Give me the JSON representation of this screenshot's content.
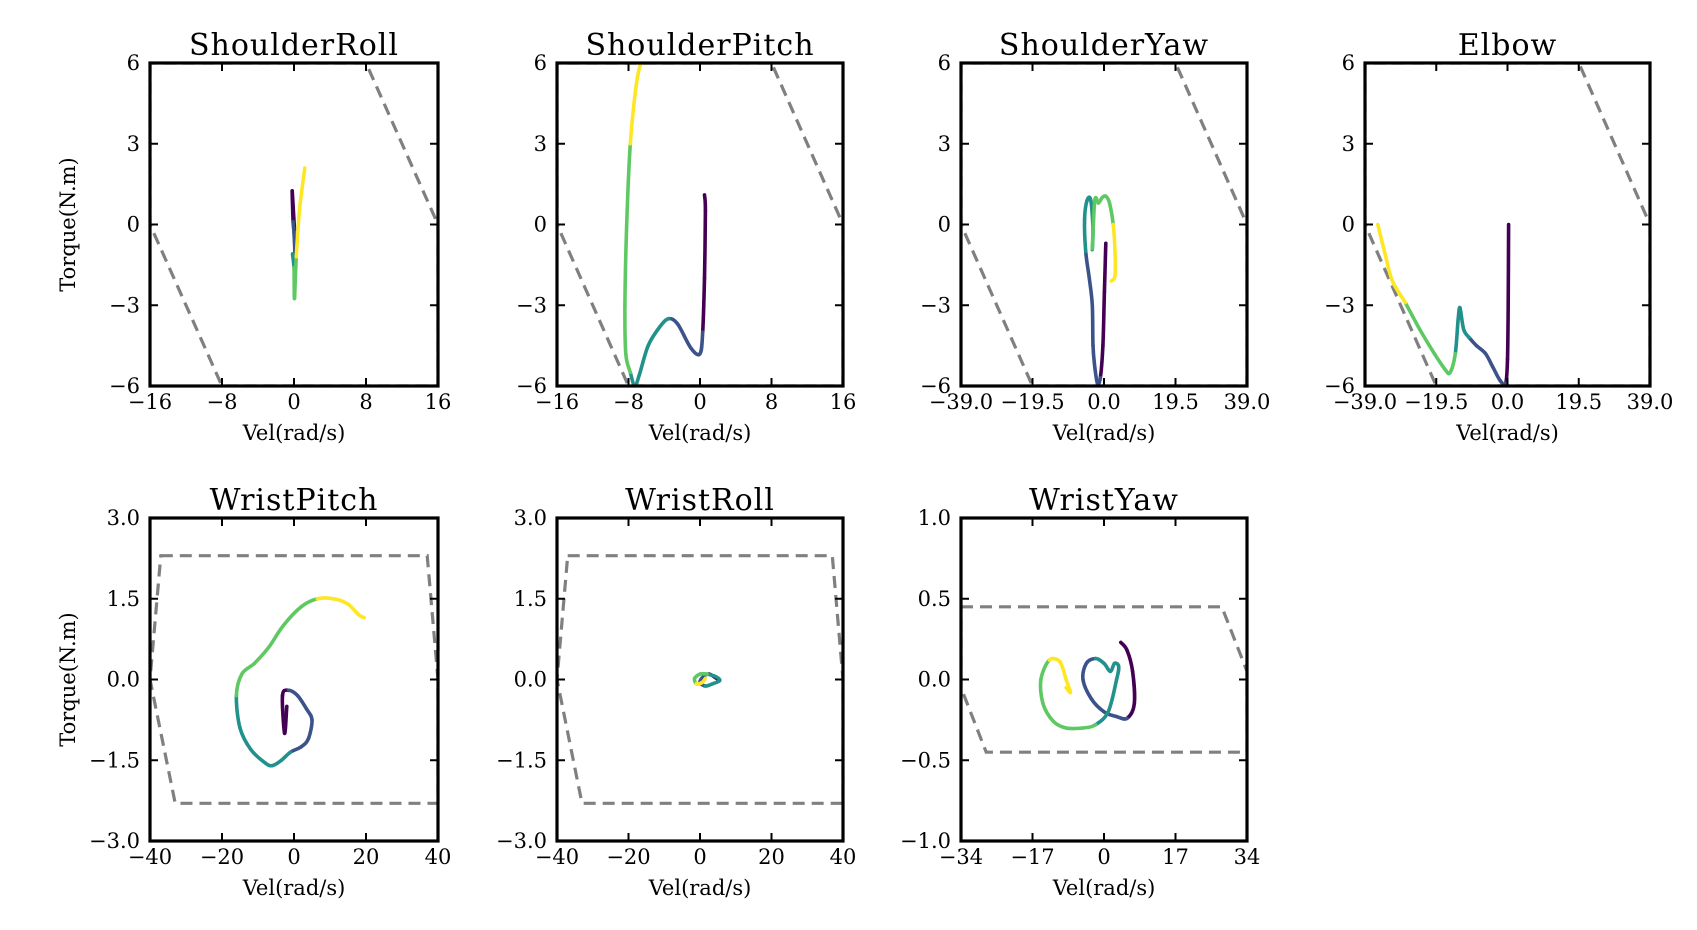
{
  "figure": {
    "colormap": [
      "#440154",
      "#3b528b",
      "#21918c",
      "#5ec962",
      "#fde725"
    ],
    "limit_color": "#808080"
  },
  "chart_data": [
    {
      "type": "line",
      "title": "ShoulderRoll",
      "xlabel": "Vel(rad/s)",
      "ylabel": "Torque(N.m)",
      "xlim": [
        -16,
        16
      ],
      "ylim": [
        -6,
        6
      ],
      "xticks": [
        -16,
        -8,
        0,
        8,
        16
      ],
      "xtick_labels": [
        "−16",
        "−8",
        "0",
        "8",
        "16"
      ],
      "yticks": [
        -6,
        -3,
        0,
        3,
        6
      ],
      "ytick_labels": [
        "−6",
        "−3",
        "0",
        "3",
        "6"
      ],
      "limit_envelope": [
        [
          -16,
          6
        ],
        [
          -16,
          0
        ],
        [
          -8,
          -6
        ],
        [
          16,
          -6
        ],
        [
          16,
          0
        ],
        [
          8,
          6
        ]
      ],
      "trajectory": [
        [
          0.05,
          -0.2
        ],
        [
          -0.2,
          1.25
        ],
        [
          -0.1,
          0.1
        ],
        [
          0.0,
          -0.3
        ],
        [
          0.1,
          -1.2
        ],
        [
          -0.15,
          -1.1
        ],
        [
          0.0,
          -1.6
        ],
        [
          0.05,
          -2.75
        ],
        [
          0.25,
          -1.2
        ],
        [
          0.6,
          0.5
        ],
        [
          1.2,
          2.1
        ]
      ]
    },
    {
      "type": "line",
      "title": "ShoulderPitch",
      "xlabel": "Vel(rad/s)",
      "ylabel": "",
      "xlim": [
        -16,
        16
      ],
      "ylim": [
        -6,
        6
      ],
      "xticks": [
        -16,
        -8,
        0,
        8,
        16
      ],
      "xtick_labels": [
        "−16",
        "−8",
        "0",
        "8",
        "16"
      ],
      "yticks": [
        -6,
        -3,
        0,
        3,
        6
      ],
      "ytick_labels": [
        "−6",
        "−3",
        "0",
        "3",
        "6"
      ],
      "limit_envelope": [
        [
          -16,
          6
        ],
        [
          -16,
          0
        ],
        [
          -8,
          -6
        ],
        [
          16,
          -6
        ],
        [
          16,
          0
        ],
        [
          8,
          6
        ]
      ],
      "trajectory": [
        [
          0.5,
          1.1
        ],
        [
          0.6,
          0.5
        ],
        [
          0.5,
          -2.0
        ],
        [
          0.3,
          -4.0
        ],
        [
          0.0,
          -4.8
        ],
        [
          -1.0,
          -4.6
        ],
        [
          -2.5,
          -3.7
        ],
        [
          -3.5,
          -3.5
        ],
        [
          -4.5,
          -3.8
        ],
        [
          -5.8,
          -4.5
        ],
        [
          -6.8,
          -5.6
        ],
        [
          -7.3,
          -6.0
        ],
        [
          -7.8,
          -5.5
        ],
        [
          -8.3,
          -4.8
        ],
        [
          -8.4,
          -3.0
        ],
        [
          -8.2,
          0.0
        ],
        [
          -7.8,
          3.0
        ],
        [
          -7.2,
          5.0
        ],
        [
          -6.7,
          5.9
        ],
        [
          -6.2,
          6.0
        ]
      ]
    },
    {
      "type": "line",
      "title": "ShoulderYaw",
      "xlabel": "Vel(rad/s)",
      "ylabel": "",
      "xlim": [
        -39,
        39
      ],
      "ylim": [
        -6,
        6
      ],
      "xticks": [
        -39,
        -19.5,
        0,
        19.5,
        39
      ],
      "xtick_labels": [
        "−39.0",
        "−19.5",
        "0.0",
        "19.5",
        "39.0"
      ],
      "yticks": [
        -6,
        -3,
        0,
        3,
        6
      ],
      "ytick_labels": [
        "−6",
        "−3",
        "0",
        "3",
        "6"
      ],
      "limit_envelope": [
        [
          -39,
          6
        ],
        [
          -39,
          0
        ],
        [
          -19.5,
          -6
        ],
        [
          39,
          -6
        ],
        [
          39,
          0
        ],
        [
          19.5,
          6
        ]
      ],
      "trajectory": [
        [
          0.5,
          -0.7
        ],
        [
          0.1,
          -2.5
        ],
        [
          -0.3,
          -4.5
        ],
        [
          -1.0,
          -5.7
        ],
        [
          -1.8,
          -5.9
        ],
        [
          -2.5,
          -5.3
        ],
        [
          -3.0,
          -4.5
        ],
        [
          -3.2,
          -3.0
        ],
        [
          -4.0,
          -2.0
        ],
        [
          -5.0,
          -1.0
        ],
        [
          -5.3,
          0.2
        ],
        [
          -4.6,
          0.9
        ],
        [
          -3.6,
          0.9
        ],
        [
          -3.0,
          -0.2
        ],
        [
          -3.2,
          -0.9
        ],
        [
          -2.5,
          0.9
        ],
        [
          -1.5,
          0.8
        ],
        [
          -0.5,
          1.0
        ],
        [
          0.5,
          1.05
        ],
        [
          1.5,
          0.8
        ],
        [
          2.5,
          0.0
        ],
        [
          3.0,
          -1.0
        ],
        [
          3.0,
          -1.9
        ],
        [
          2.0,
          -2.1
        ]
      ]
    },
    {
      "type": "line",
      "title": "Elbow",
      "xlabel": "Vel(rad/s)",
      "ylabel": "",
      "xlim": [
        -39,
        39
      ],
      "ylim": [
        -6,
        6
      ],
      "xticks": [
        -39,
        -19.5,
        0,
        19.5,
        39
      ],
      "xtick_labels": [
        "−39.0",
        "−19.5",
        "0.0",
        "19.5",
        "39.0"
      ],
      "yticks": [
        -6,
        -3,
        0,
        3,
        6
      ],
      "ytick_labels": [
        "−6",
        "−3",
        "0",
        "3",
        "6"
      ],
      "limit_envelope": [
        [
          -39,
          6
        ],
        [
          -39,
          0
        ],
        [
          -19.5,
          -6
        ],
        [
          39,
          -6
        ],
        [
          39,
          0
        ],
        [
          19.5,
          6
        ]
      ],
      "trajectory": [
        [
          0.3,
          0.0
        ],
        [
          0.2,
          -3.0
        ],
        [
          0.0,
          -5.0
        ],
        [
          -0.5,
          -5.9
        ],
        [
          -2.0,
          -5.8
        ],
        [
          -4.0,
          -5.3
        ],
        [
          -6.0,
          -4.8
        ],
        [
          -8.5,
          -4.5
        ],
        [
          -10.5,
          -4.2
        ],
        [
          -12.0,
          -3.9
        ],
        [
          -13.0,
          -3.1
        ],
        [
          -13.5,
          -3.5
        ],
        [
          -14.3,
          -4.8
        ],
        [
          -15.7,
          -5.5
        ],
        [
          -17.0,
          -5.4
        ],
        [
          -20.0,
          -4.8
        ],
        [
          -24.0,
          -3.9
        ],
        [
          -28.0,
          -2.9
        ],
        [
          -31.5,
          -2.1
        ],
        [
          -33.5,
          -1.1
        ],
        [
          -35.5,
          0.0
        ]
      ]
    },
    {
      "type": "line",
      "title": "WristPitch",
      "xlabel": "Vel(rad/s)",
      "ylabel": "Torque(N.m)",
      "xlim": [
        -40,
        40
      ],
      "ylim": [
        -3,
        3
      ],
      "xticks": [
        -40,
        -20,
        0,
        20,
        40
      ],
      "xtick_labels": [
        "−40",
        "−20",
        "0",
        "20",
        "40"
      ],
      "yticks": [
        -3,
        -1.5,
        0,
        1.5,
        3
      ],
      "ytick_labels": [
        "−3.0",
        "−1.5",
        "0.0",
        "1.5",
        "3.0"
      ],
      "limit_envelope": [
        [
          -37,
          2.3
        ],
        [
          37,
          2.3
        ],
        [
          40,
          0
        ],
        [
          40,
          -2.3
        ],
        [
          -33,
          -2.3
        ],
        [
          -40,
          0
        ]
      ],
      "trajectory": [
        [
          -2.0,
          -0.5
        ],
        [
          -2.6,
          -1.0
        ],
        [
          -3.2,
          -0.3
        ],
        [
          -1.5,
          -0.2
        ],
        [
          1.0,
          -0.3
        ],
        [
          3.5,
          -0.55
        ],
        [
          5.0,
          -0.75
        ],
        [
          4.0,
          -1.1
        ],
        [
          2.0,
          -1.25
        ],
        [
          -1.0,
          -1.35
        ],
        [
          -3.5,
          -1.5
        ],
        [
          -6.0,
          -1.6
        ],
        [
          -8.0,
          -1.55
        ],
        [
          -12.0,
          -1.3
        ],
        [
          -15.0,
          -0.9
        ],
        [
          -16.0,
          -0.3
        ],
        [
          -14.5,
          0.1
        ],
        [
          -11.0,
          0.3
        ],
        [
          -7.0,
          0.6
        ],
        [
          -3.0,
          1.0
        ],
        [
          2.0,
          1.35
        ],
        [
          6.5,
          1.5
        ],
        [
          11.0,
          1.5
        ],
        [
          15.0,
          1.4
        ],
        [
          18.0,
          1.2
        ],
        [
          19.5,
          1.15
        ]
      ]
    },
    {
      "type": "line",
      "title": "WristRoll",
      "xlabel": "Vel(rad/s)",
      "ylabel": "",
      "xlim": [
        -40,
        40
      ],
      "ylim": [
        -3,
        3
      ],
      "xticks": [
        -40,
        -20,
        0,
        20,
        40
      ],
      "xtick_labels": [
        "−40",
        "−20",
        "0",
        "20",
        "40"
      ],
      "yticks": [
        -3,
        -1.5,
        0,
        1.5,
        3
      ],
      "ytick_labels": [
        "−3.0",
        "−1.5",
        "0.0",
        "1.5",
        "3.0"
      ],
      "limit_envelope": [
        [
          -37,
          2.3
        ],
        [
          37,
          2.3
        ],
        [
          40,
          0
        ],
        [
          40,
          -2.3
        ],
        [
          -33,
          -2.3
        ],
        [
          -40,
          0
        ]
      ],
      "trajectory": [
        [
          5.0,
          0.0
        ],
        [
          4.0,
          0.05
        ],
        [
          2.5,
          0.1
        ],
        [
          1.0,
          0.06
        ],
        [
          0.0,
          -0.05
        ],
        [
          1.5,
          -0.12
        ],
        [
          3.5,
          -0.08
        ],
        [
          5.5,
          -0.02
        ],
        [
          4.5,
          0.05
        ],
        [
          2.0,
          0.1
        ],
        [
          0.0,
          0.1
        ],
        [
          -1.5,
          0.02
        ],
        [
          -1.0,
          -0.08
        ],
        [
          0.5,
          -0.06
        ],
        [
          1.5,
          0.02
        ]
      ]
    },
    {
      "type": "line",
      "title": "WristYaw",
      "xlabel": "Vel(rad/s)",
      "ylabel": "",
      "xlim": [
        -34,
        34
      ],
      "ylim": [
        -1,
        1
      ],
      "xticks": [
        -34,
        -17,
        0,
        17,
        34
      ],
      "xtick_labels": [
        "−34",
        "−17",
        "0",
        "17",
        "34"
      ],
      "yticks": [
        -1,
        -0.5,
        0,
        0.5,
        1
      ],
      "ytick_labels": [
        "−1.0",
        "−0.5",
        "0.0",
        "0.5",
        "1.0"
      ],
      "limit_envelope": [
        [
          -34,
          0.45
        ],
        [
          28,
          0.45
        ],
        [
          34,
          0.05
        ],
        [
          34,
          -0.45
        ],
        [
          -28,
          -0.45
        ],
        [
          -34,
          -0.05
        ]
      ],
      "trajectory": [
        [
          4.0,
          0.23
        ],
        [
          5.5,
          0.18
        ],
        [
          6.8,
          0.05
        ],
        [
          7.2,
          -0.15
        ],
        [
          5.5,
          -0.24
        ],
        [
          3.0,
          -0.23
        ],
        [
          0.0,
          -0.2
        ],
        [
          -3.0,
          -0.12
        ],
        [
          -5.0,
          0.0
        ],
        [
          -4.2,
          0.1
        ],
        [
          -2.0,
          0.13
        ],
        [
          0.0,
          0.1
        ],
        [
          1.5,
          0.05
        ],
        [
          2.5,
          0.1
        ],
        [
          3.5,
          0.08
        ],
        [
          3.0,
          0.0
        ],
        [
          1.0,
          -0.2
        ],
        [
          -2.0,
          -0.28
        ],
        [
          -5.0,
          -0.3
        ],
        [
          -9.0,
          -0.3
        ],
        [
          -12.0,
          -0.26
        ],
        [
          -14.5,
          -0.15
        ],
        [
          -15.0,
          0.0
        ],
        [
          -13.0,
          0.12
        ],
        [
          -10.5,
          0.11
        ],
        [
          -9.0,
          0.0
        ],
        [
          -8.0,
          -0.08
        ],
        [
          -9.0,
          -0.05
        ]
      ]
    }
  ]
}
